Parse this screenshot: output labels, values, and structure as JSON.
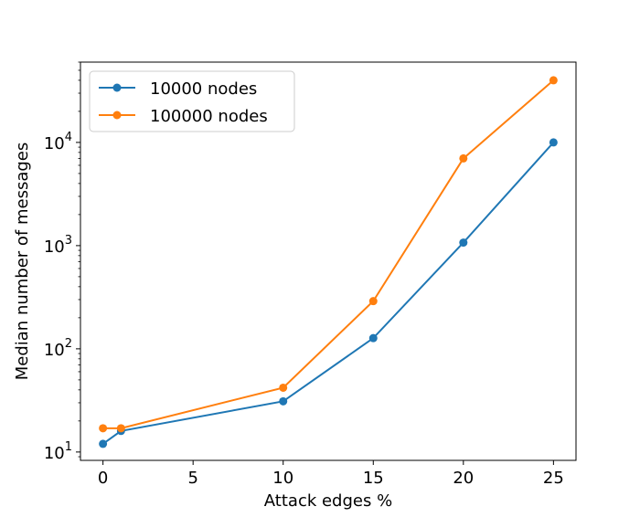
{
  "chart_data": {
    "type": "line",
    "xlabel": "Attack edges %",
    "ylabel": "Median number of messages",
    "yscale": "log",
    "xlim": [
      -1.25,
      26.25
    ],
    "ylim": [
      8.3,
      60000
    ],
    "xticks": [
      0,
      5,
      10,
      15,
      20,
      25
    ],
    "yticks": [
      {
        "value": 10,
        "base": "10",
        "exp": "1"
      },
      {
        "value": 100,
        "base": "10",
        "exp": "2"
      },
      {
        "value": 1000,
        "base": "10",
        "exp": "3"
      },
      {
        "value": 10000,
        "base": "10",
        "exp": "4"
      }
    ],
    "legend_position": "top-left",
    "grid": false,
    "series": [
      {
        "name": "10000 nodes",
        "color": "#1f77b4",
        "marker": "circle",
        "x": [
          0,
          1,
          10,
          15,
          20,
          25
        ],
        "y": [
          12,
          16,
          31,
          127,
          1070,
          10000
        ]
      },
      {
        "name": "100000 nodes",
        "color": "#ff7f0e",
        "marker": "circle",
        "x": [
          0,
          1,
          10,
          15,
          20,
          25
        ],
        "y": [
          17,
          17,
          42,
          290,
          7000,
          40000
        ]
      }
    ]
  }
}
